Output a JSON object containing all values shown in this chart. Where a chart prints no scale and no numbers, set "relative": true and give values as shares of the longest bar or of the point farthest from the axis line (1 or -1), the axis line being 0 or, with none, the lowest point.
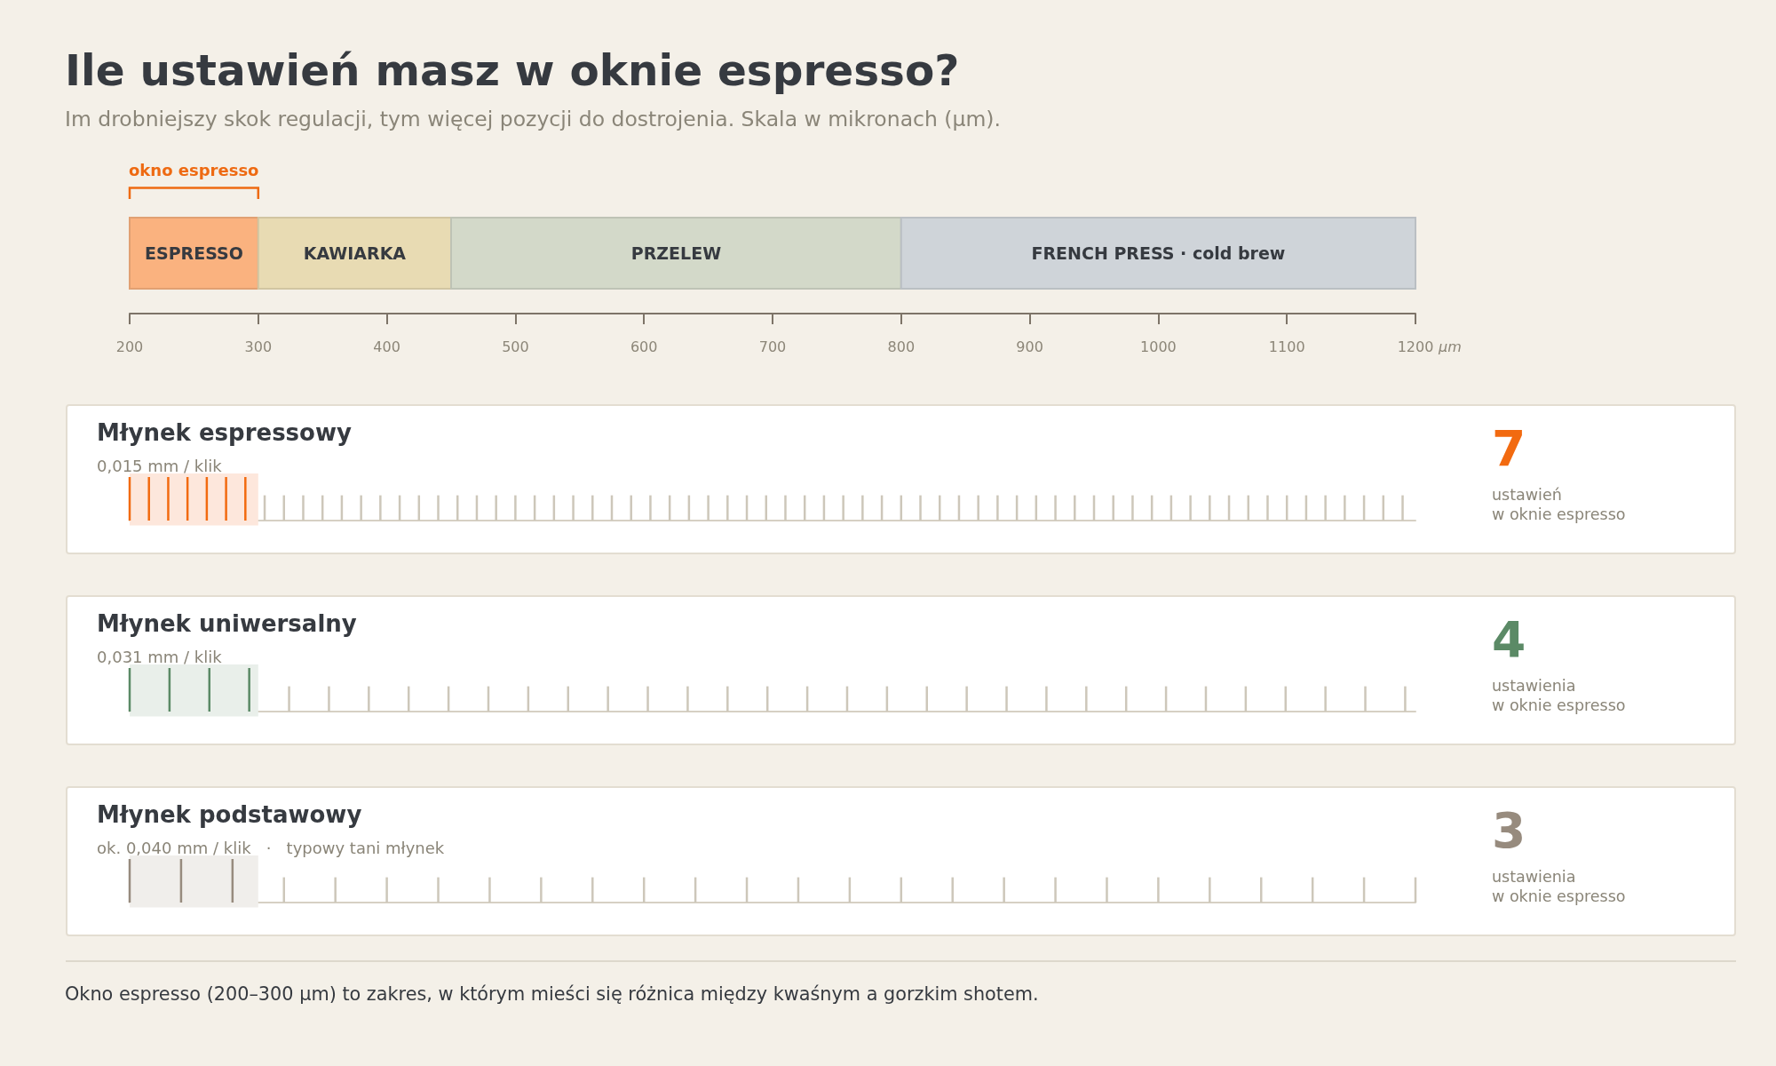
{
  "chart_data": [
    {
      "type": "bar",
      "orientation": "horizontal",
      "title": "Ile ustawień masz w oknie espresso?",
      "subtitle": "Im drobniejszy skok regulacji, tym więcej pozycji do dostrojenia. Skala w mikronach (µm).",
      "categories": [
        null
      ],
      "series": [
        {
          "name": "ESPRESSO",
          "color": "#fab27f",
          "base": [
            200
          ],
          "values": [
            100
          ]
        },
        {
          "name": "KAWIARKA",
          "color": "#e8dbb3",
          "base": [
            300
          ],
          "values": [
            150
          ]
        },
        {
          "name": "PRZELEW",
          "color": "#d3d9c9",
          "base": [
            450
          ],
          "values": [
            350
          ]
        },
        {
          "name": "FRENCH PRESS · cold brew",
          "color": "#cfd4d9",
          "base": [
            800
          ],
          "values": [
            400
          ]
        }
      ],
      "xlabel": "µm",
      "xlim": [
        200,
        1200
      ],
      "xticks": [
        200,
        300,
        400,
        500,
        600,
        700,
        800,
        900,
        1000,
        1100,
        1200
      ],
      "annotations": [
        "okno espresso"
      ]
    },
    {
      "type": "bar",
      "title": "Młynek espressowy",
      "subtitle": "0,015 mm / klik",
      "relative": true,
      "x": [
        200,
        215,
        230,
        245,
        260,
        275,
        290,
        305,
        320,
        335,
        350,
        365,
        380,
        395,
        410,
        425,
        440,
        455,
        470,
        485,
        500,
        515,
        530,
        545,
        560,
        575,
        590,
        605,
        620,
        635,
        650,
        665,
        680,
        695,
        710,
        725,
        740,
        755,
        770,
        785,
        800,
        815,
        830,
        845,
        860,
        875,
        890,
        905,
        920,
        935,
        950,
        965,
        980,
        995,
        1010,
        1025,
        1040,
        1055,
        1070,
        1085,
        1100,
        1115,
        1130,
        1145,
        1160,
        1175,
        1190
      ],
      "values": [
        1,
        1,
        1,
        1,
        1,
        1,
        1,
        0.58,
        0.58,
        0.58,
        0.58,
        0.58,
        0.58,
        0.58,
        0.58,
        0.58,
        0.58,
        0.58,
        0.58,
        0.58,
        0.58,
        0.58,
        0.58,
        0.58,
        0.58,
        0.58,
        0.58,
        0.58,
        0.58,
        0.58,
        0.58,
        0.58,
        0.58,
        0.58,
        0.58,
        0.58,
        0.58,
        0.58,
        0.58,
        0.58,
        0.58,
        0.58,
        0.58,
        0.58,
        0.58,
        0.58,
        0.58,
        0.58,
        0.58,
        0.58,
        0.58,
        0.58,
        0.58,
        0.58,
        0.58,
        0.58,
        0.58,
        0.58,
        0.58,
        0.58,
        0.58,
        0.58,
        0.58,
        0.58,
        0.58,
        0.58,
        0.58
      ],
      "colors": [
        "#f26a10",
        "#f26a10",
        "#f26a10",
        "#f26a10",
        "#f26a10",
        "#f26a10",
        "#f26a10",
        "#cdc7ba",
        "#cdc7ba",
        "#cdc7ba",
        "#cdc7ba",
        "#cdc7ba",
        "#cdc7ba",
        "#cdc7ba",
        "#cdc7ba",
        "#cdc7ba",
        "#cdc7ba",
        "#cdc7ba",
        "#cdc7ba",
        "#cdc7ba",
        "#cdc7ba",
        "#cdc7ba",
        "#cdc7ba",
        "#cdc7ba",
        "#cdc7ba",
        "#cdc7ba",
        "#cdc7ba",
        "#cdc7ba",
        "#cdc7ba",
        "#cdc7ba",
        "#cdc7ba",
        "#cdc7ba",
        "#cdc7ba",
        "#cdc7ba",
        "#cdc7ba",
        "#cdc7ba",
        "#cdc7ba",
        "#cdc7ba",
        "#cdc7ba",
        "#cdc7ba",
        "#cdc7ba",
        "#cdc7ba",
        "#cdc7ba",
        "#cdc7ba",
        "#cdc7ba",
        "#cdc7ba",
        "#cdc7ba",
        "#cdc7ba",
        "#cdc7ba",
        "#cdc7ba",
        "#cdc7ba",
        "#cdc7ba",
        "#cdc7ba",
        "#cdc7ba",
        "#cdc7ba",
        "#cdc7ba",
        "#cdc7ba",
        "#cdc7ba",
        "#cdc7ba",
        "#cdc7ba",
        "#cdc7ba",
        "#cdc7ba",
        "#cdc7ba",
        "#cdc7ba",
        "#cdc7ba",
        "#cdc7ba",
        "#cdc7ba"
      ],
      "xlim": [
        200,
        1200
      ],
      "tick_labels": false,
      "bands": [
        {
          "axis": "x",
          "from": 200,
          "to": 300,
          "color": "#fde7dc"
        }
      ],
      "annotations": [
        "7",
        "ustawień",
        "w oknie espresso"
      ]
    },
    {
      "type": "bar",
      "title": "Młynek uniwersalny",
      "subtitle": "0,031 mm / klik",
      "relative": true,
      "x": [
        200,
        231,
        262,
        293,
        324,
        355,
        386,
        417,
        448,
        479,
        510,
        541,
        572,
        603,
        634,
        665,
        696,
        727,
        758,
        789,
        820,
        851,
        882,
        913,
        944,
        975,
        1006,
        1037,
        1068,
        1099,
        1130,
        1161,
        1192
      ],
      "values": [
        1,
        1,
        1,
        1,
        0.58,
        0.58,
        0.58,
        0.58,
        0.58,
        0.58,
        0.58,
        0.58,
        0.58,
        0.58,
        0.58,
        0.58,
        0.58,
        0.58,
        0.58,
        0.58,
        0.58,
        0.58,
        0.58,
        0.58,
        0.58,
        0.58,
        0.58,
        0.58,
        0.58,
        0.58,
        0.58,
        0.58,
        0.58
      ],
      "colors": [
        "#5b8a66",
        "#5b8a66",
        "#5b8a66",
        "#5b8a66",
        "#cdc7ba",
        "#cdc7ba",
        "#cdc7ba",
        "#cdc7ba",
        "#cdc7ba",
        "#cdc7ba",
        "#cdc7ba",
        "#cdc7ba",
        "#cdc7ba",
        "#cdc7ba",
        "#cdc7ba",
        "#cdc7ba",
        "#cdc7ba",
        "#cdc7ba",
        "#cdc7ba",
        "#cdc7ba",
        "#cdc7ba",
        "#cdc7ba",
        "#cdc7ba",
        "#cdc7ba",
        "#cdc7ba",
        "#cdc7ba",
        "#cdc7ba",
        "#cdc7ba",
        "#cdc7ba",
        "#cdc7ba",
        "#cdc7ba",
        "#cdc7ba",
        "#cdc7ba"
      ],
      "xlim": [
        200,
        1200
      ],
      "tick_labels": false,
      "bands": [
        {
          "axis": "x",
          "from": 200,
          "to": 300,
          "color": "#e9efea"
        }
      ],
      "annotations": [
        "4",
        "ustawienia",
        "w oknie espresso"
      ]
    },
    {
      "type": "bar",
      "title": "Młynek podstawowy",
      "subtitle": "ok. 0,040 mm / klik   ·   typowy tani młynek",
      "relative": true,
      "x": [
        200,
        240,
        280,
        320,
        360,
        400,
        440,
        480,
        520,
        560,
        600,
        640,
        680,
        720,
        760,
        800,
        840,
        880,
        920,
        960,
        1000,
        1040,
        1080,
        1120,
        1160,
        1200
      ],
      "values": [
        1,
        1,
        1,
        0.58,
        0.58,
        0.58,
        0.58,
        0.58,
        0.58,
        0.58,
        0.58,
        0.58,
        0.58,
        0.58,
        0.58,
        0.58,
        0.58,
        0.58,
        0.58,
        0.58,
        0.58,
        0.58,
        0.58,
        0.58,
        0.58,
        0.58
      ],
      "colors": [
        "#978b7e",
        "#978b7e",
        "#978b7e",
        "#cdc7ba",
        "#cdc7ba",
        "#cdc7ba",
        "#cdc7ba",
        "#cdc7ba",
        "#cdc7ba",
        "#cdc7ba",
        "#cdc7ba",
        "#cdc7ba",
        "#cdc7ba",
        "#cdc7ba",
        "#cdc7ba",
        "#cdc7ba",
        "#cdc7ba",
        "#cdc7ba",
        "#cdc7ba",
        "#cdc7ba",
        "#cdc7ba",
        "#cdc7ba",
        "#cdc7ba",
        "#cdc7ba",
        "#cdc7ba",
        "#cdc7ba"
      ],
      "xlim": [
        200,
        1200
      ],
      "tick_labels": false,
      "bands": [
        {
          "axis": "x",
          "from": 200,
          "to": 300,
          "color": "#f0eeeb"
        }
      ],
      "annotations": [
        "3",
        "ustawienia",
        "w oknie espresso",
        "Okno espresso (200–300 µm) to zakres, w którym mieści się różnica między kwaśnym a gorzkim shotem."
      ]
    }
  ]
}
